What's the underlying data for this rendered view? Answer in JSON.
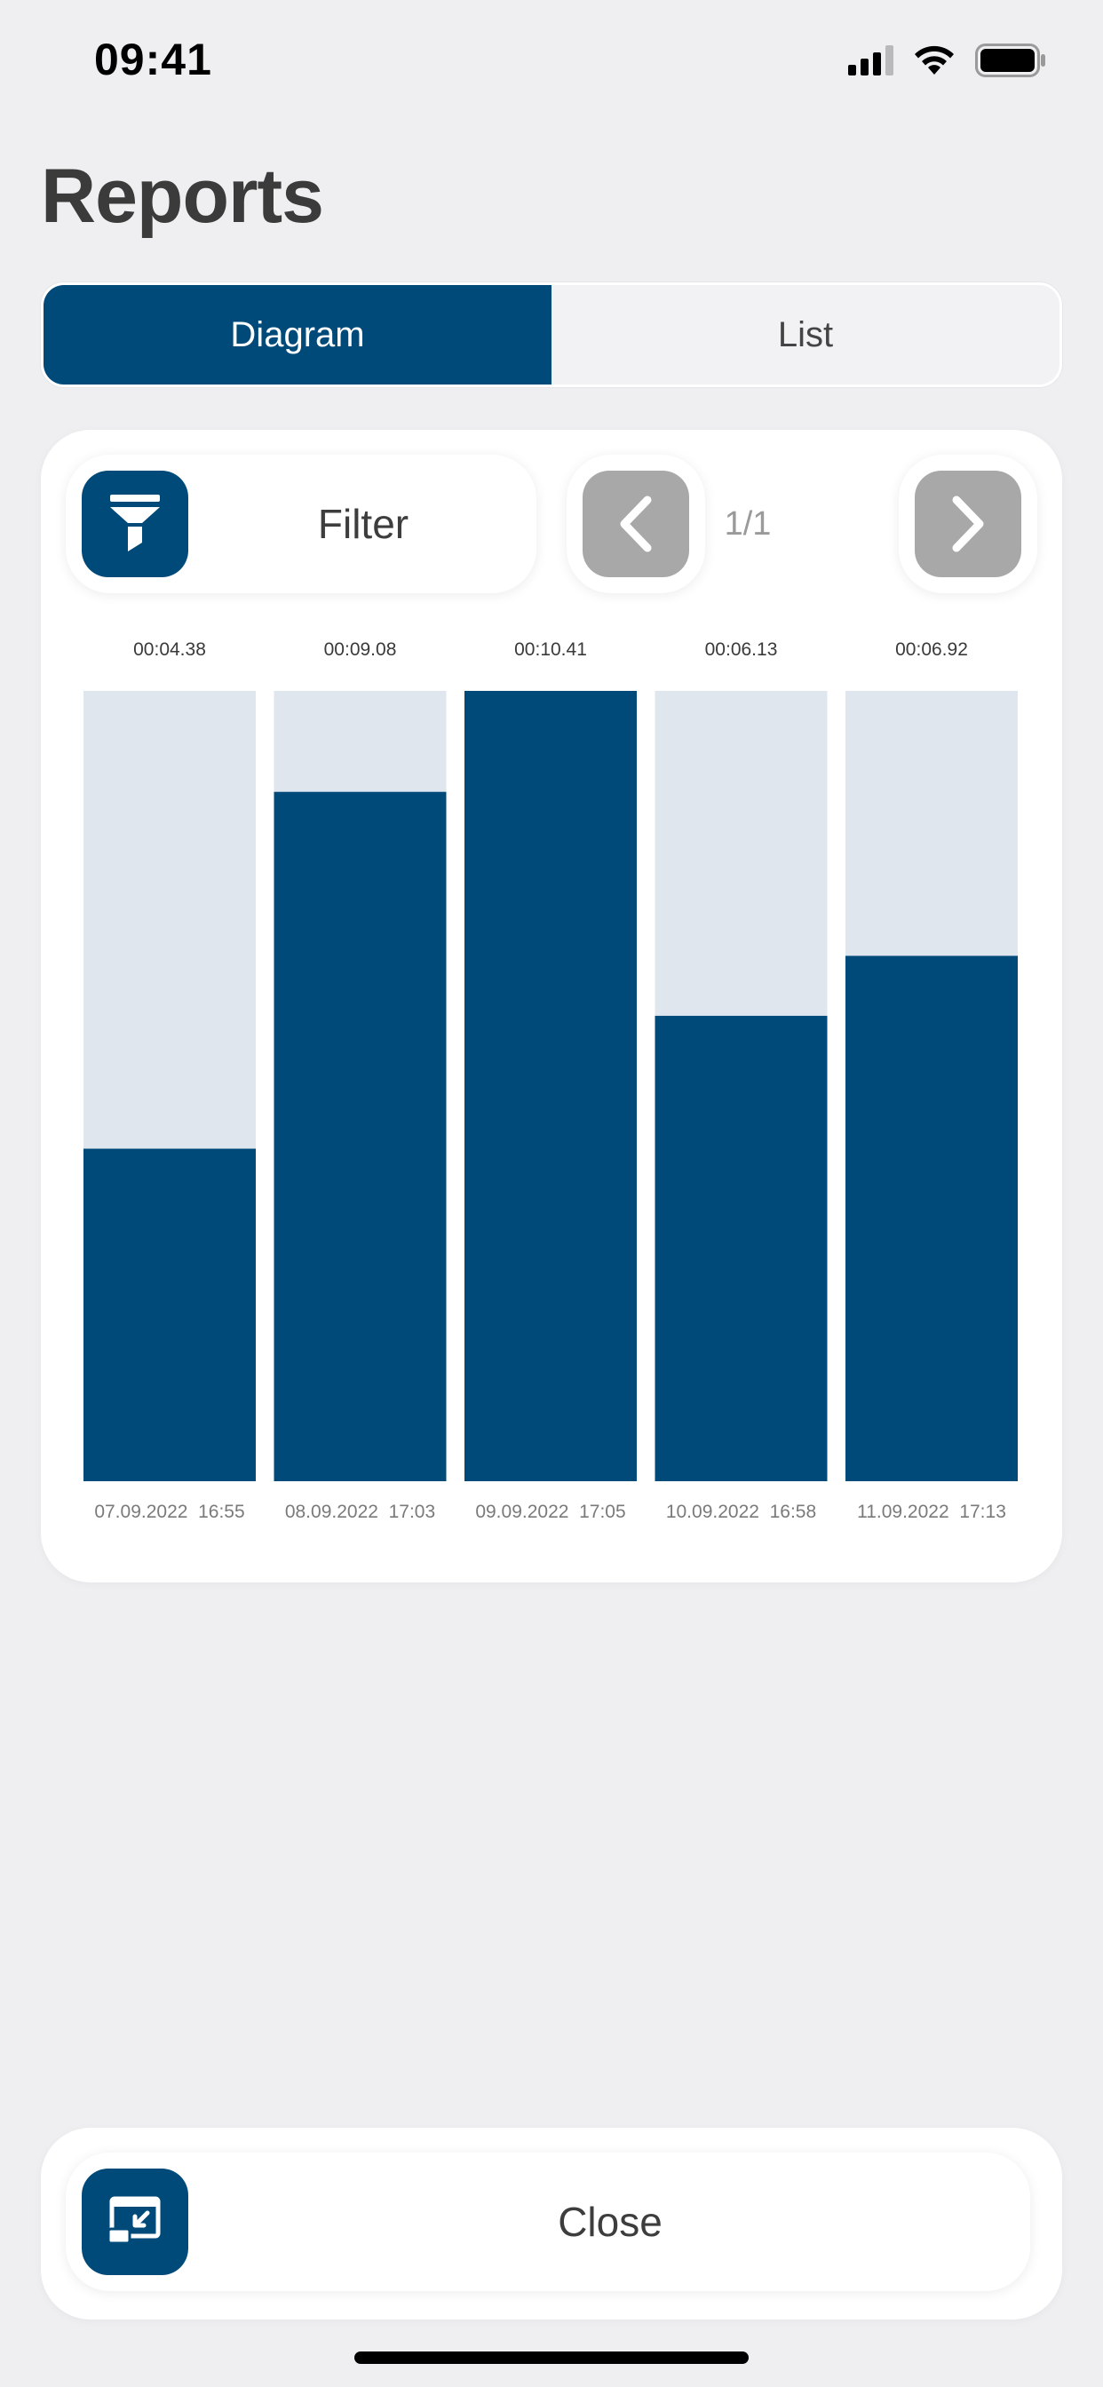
{
  "status_bar": {
    "time": "09:41"
  },
  "page_title": "Reports",
  "tabs": [
    {
      "label": "Diagram",
      "active": true
    },
    {
      "label": "List",
      "active": false
    }
  ],
  "filter": {
    "label": "Filter"
  },
  "pagination": {
    "indicator": "1/1"
  },
  "close": {
    "label": "Close"
  },
  "colors": {
    "accent": "#004a7a",
    "track": "#dfe6ee",
    "disabled": "#a8a8a8"
  },
  "chart_data": {
    "type": "bar",
    "categories": [
      "07.09.2022  16:55",
      "08.09.2022  17:03",
      "09.09.2022  17:05",
      "10.09.2022  16:58",
      "11.09.2022  17:13"
    ],
    "data_labels": [
      "00:04.38",
      "00:09.08",
      "00:10.41",
      "00:06.13",
      "00:06.92"
    ],
    "values": [
      4.38,
      9.08,
      10.41,
      6.13,
      6.92
    ],
    "ylim": [
      0,
      10.41
    ]
  }
}
